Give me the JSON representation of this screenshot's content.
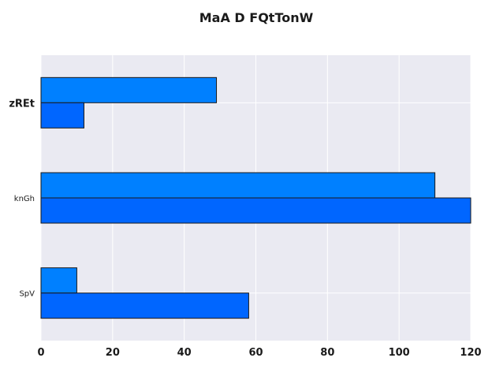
{
  "chart_data": {
    "type": "bar",
    "orientation": "horizontal",
    "title": "MaA D FQtTonW",
    "categories": [
      "zREt",
      "knGh",
      "SpV"
    ],
    "series": [
      {
        "values": [
          49,
          110,
          10
        ]
      },
      {
        "values": [
          12,
          120,
          58
        ]
      }
    ],
    "xlim": [
      0,
      120
    ],
    "xticks": [
      0,
      20,
      40,
      60,
      80,
      100,
      120
    ],
    "grid": true,
    "colors": {
      "plot_background": "#eaeaf2",
      "grid": "#ffffff",
      "series": [
        "#0080ff",
        "#0066ff"
      ],
      "bar_edge": "#1a1a1a"
    }
  }
}
